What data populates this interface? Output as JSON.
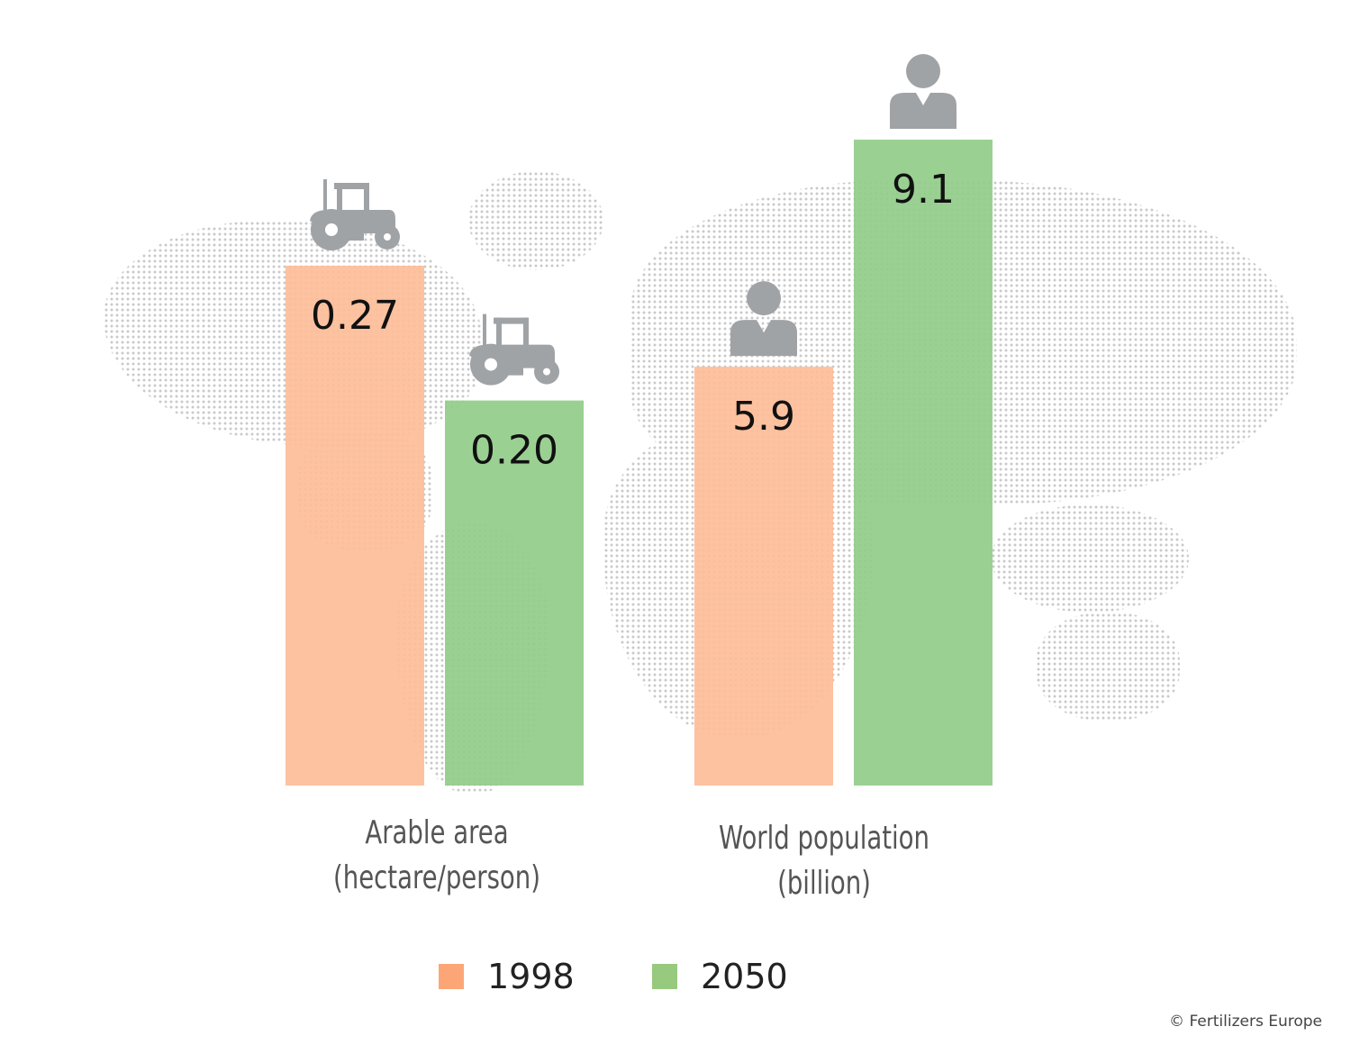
{
  "chart_data": {
    "type": "bar",
    "groups": [
      {
        "label_line1": "Arable area",
        "label_line2": "(hectare/person)",
        "icon": "tractor-icon",
        "values": [
          {
            "series": "1998",
            "value": 0.27,
            "label": "0.27"
          },
          {
            "series": "2050",
            "value": 0.2,
            "label": "0.20"
          }
        ]
      },
      {
        "label_line1": "World population",
        "label_line2": "(billion)",
        "icon": "person-icon",
        "values": [
          {
            "series": "1998",
            "value": 5.9,
            "label": "5.9"
          },
          {
            "series": "2050",
            "value": 9.1,
            "label": "9.1"
          }
        ]
      }
    ],
    "series": [
      {
        "name": "1998",
        "color": "#fca677"
      },
      {
        "name": "2050",
        "color": "#97c97e"
      }
    ],
    "bar_colors": {
      "1998": "#fdbd98",
      "2050": "#93cc8a"
    },
    "axes": "none",
    "grid": false,
    "legend_placement": "bottom",
    "background": "dotted world map"
  },
  "credit": "© Fertilizers Europe"
}
